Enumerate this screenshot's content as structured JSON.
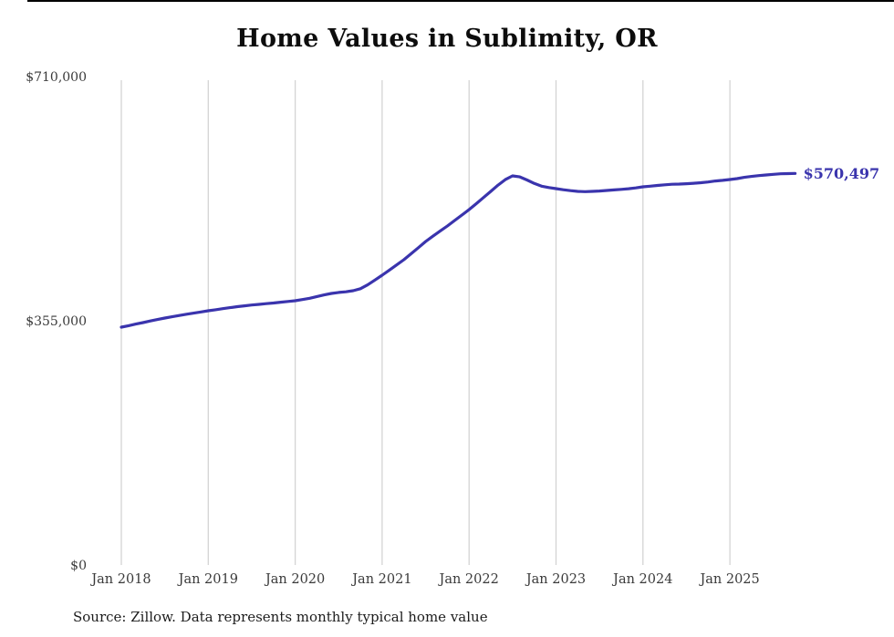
{
  "page": {
    "title": "Home Values in Sublimity, OR",
    "source_note": "Source: Zillow. Data represents monthly typical home value"
  },
  "chart_data": {
    "type": "line",
    "title": "Home Values in Sublimity, OR",
    "series_name": "Typical home value",
    "unit": "USD",
    "frequency": "monthly",
    "xlabel": "",
    "ylabel": "",
    "ylim": [
      0,
      710000
    ],
    "grid": "vertical",
    "legend": "none",
    "line_color": "#3a34ad",
    "grid_color": "#d4d4d4",
    "text_color": "#3a3a3a",
    "end_label": "$570,497",
    "latest_value": 570497,
    "y_ticks": [
      {
        "label": "$0",
        "value": 0
      },
      {
        "label": "$355,000",
        "value": 355000
      },
      {
        "label": "$710,000",
        "value": 710000
      }
    ],
    "x_ticks": [
      "Jan 2018",
      "Jan 2019",
      "Jan 2020",
      "Jan 2021",
      "Jan 2022",
      "Jan 2023",
      "Jan 2024",
      "Jan 2025"
    ],
    "x": [
      "2018-01",
      "2018-02",
      "2018-03",
      "2018-04",
      "2018-05",
      "2018-06",
      "2018-07",
      "2018-08",
      "2018-09",
      "2018-10",
      "2018-11",
      "2018-12",
      "2019-01",
      "2019-02",
      "2019-03",
      "2019-04",
      "2019-05",
      "2019-06",
      "2019-07",
      "2019-08",
      "2019-09",
      "2019-10",
      "2019-11",
      "2019-12",
      "2020-01",
      "2020-02",
      "2020-03",
      "2020-04",
      "2020-05",
      "2020-06",
      "2020-07",
      "2020-08",
      "2020-09",
      "2020-10",
      "2020-11",
      "2020-12",
      "2021-01",
      "2021-02",
      "2021-03",
      "2021-04",
      "2021-05",
      "2021-06",
      "2021-07",
      "2021-08",
      "2021-09",
      "2021-10",
      "2021-11",
      "2021-12",
      "2022-01",
      "2022-02",
      "2022-03",
      "2022-04",
      "2022-05",
      "2022-06",
      "2022-07",
      "2022-08",
      "2022-09",
      "2022-10",
      "2022-11",
      "2022-12",
      "2023-01",
      "2023-02",
      "2023-03",
      "2023-04",
      "2023-05",
      "2023-06",
      "2023-07",
      "2023-08",
      "2023-09",
      "2023-10",
      "2023-11",
      "2023-12",
      "2024-01",
      "2024-02",
      "2024-03",
      "2024-04",
      "2024-05",
      "2024-06",
      "2024-07",
      "2024-08",
      "2024-09",
      "2024-10",
      "2024-11",
      "2024-12",
      "2025-01",
      "2025-02",
      "2025-03",
      "2025-04",
      "2025-05",
      "2025-06",
      "2025-07",
      "2025-08",
      "2025-09",
      "2025-10"
    ],
    "values": [
      347000,
      349200,
      351500,
      353700,
      356000,
      358200,
      360300,
      362200,
      364000,
      365800,
      367500,
      369200,
      370900,
      372400,
      373900,
      375400,
      376800,
      378000,
      379200,
      380200,
      381200,
      382200,
      383300,
      384400,
      385500,
      387200,
      389000,
      391500,
      394000,
      396000,
      397500,
      398500,
      400000,
      403000,
      408500,
      415500,
      422500,
      430000,
      437500,
      445100,
      453800,
      462600,
      471600,
      479200,
      486700,
      494100,
      502000,
      510000,
      517900,
      526500,
      535500,
      544400,
      553500,
      561500,
      567000,
      565500,
      561000,
      556000,
      552000,
      550000,
      548400,
      546800,
      545500,
      544400,
      544000,
      544400,
      545000,
      545800,
      546500,
      547300,
      548200,
      549500,
      551000,
      552000,
      553000,
      554000,
      554700,
      555000,
      555500,
      556200,
      557000,
      558000,
      559500,
      560500,
      561600,
      563000,
      564800,
      566200,
      567300,
      568300,
      569200,
      570000,
      570200,
      570497
    ]
  }
}
